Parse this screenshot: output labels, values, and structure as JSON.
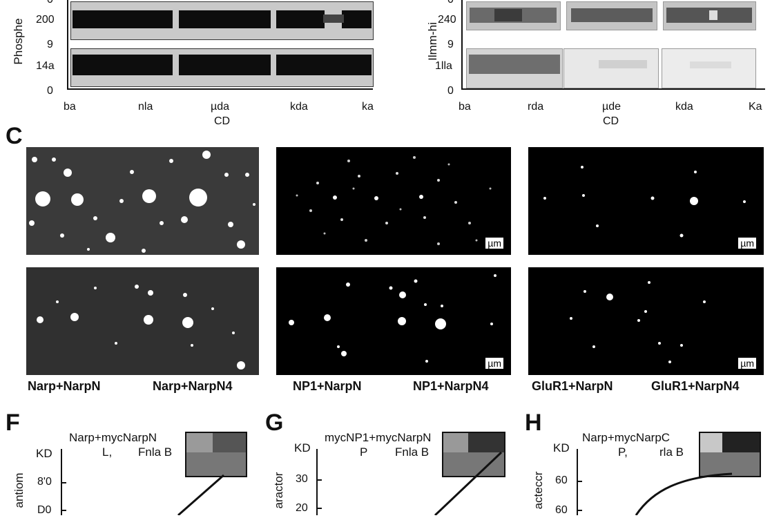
{
  "top_left": {
    "ylabel": "Phosphe",
    "yticks": [
      "0",
      "200",
      "9",
      "14a",
      "0"
    ],
    "xticks": [
      "ba",
      "nla",
      "µda",
      "kda",
      "ka"
    ],
    "xlabel": "CD"
  },
  "top_right": {
    "ylabel": "Ilmm-hi",
    "yticks": [
      "0",
      "240",
      "9",
      "1lla",
      "0"
    ],
    "xticks": [
      "ba",
      "rda",
      "µde",
      "kda",
      "Ka"
    ],
    "xlabel": "CD"
  },
  "panel_c": {
    "letter": "C",
    "scale_label": "µm",
    "captions": [
      "Narp+NarpN",
      "Narp+NarpN4",
      "NP1+NarpN",
      "NP1+NarpN4",
      "GluR1+NarpN",
      "GluR1+NarpN4"
    ]
  },
  "panel_f": {
    "letter": "F",
    "title": "Narp+mycNarpN",
    "subtitle_left": "L,",
    "subtitle_right": "Fnla B",
    "unit": "KD",
    "yticks": [
      "8'0",
      "D0"
    ],
    "ylabel": "antiom"
  },
  "panel_g": {
    "letter": "G",
    "title": "mycNP1+mycNarpN",
    "subtitle_left": "P",
    "subtitle_right": "Fnla B",
    "unit": "KD",
    "yticks": [
      "30",
      "20"
    ],
    "ylabel": "aractor"
  },
  "panel_h": {
    "letter": "H",
    "title": "Narp+mycNarpC",
    "subtitle_left": "P,",
    "subtitle_right": "rla B",
    "unit": "KD",
    "yticks": [
      "60",
      "60"
    ],
    "ylabel": "acteccr"
  }
}
